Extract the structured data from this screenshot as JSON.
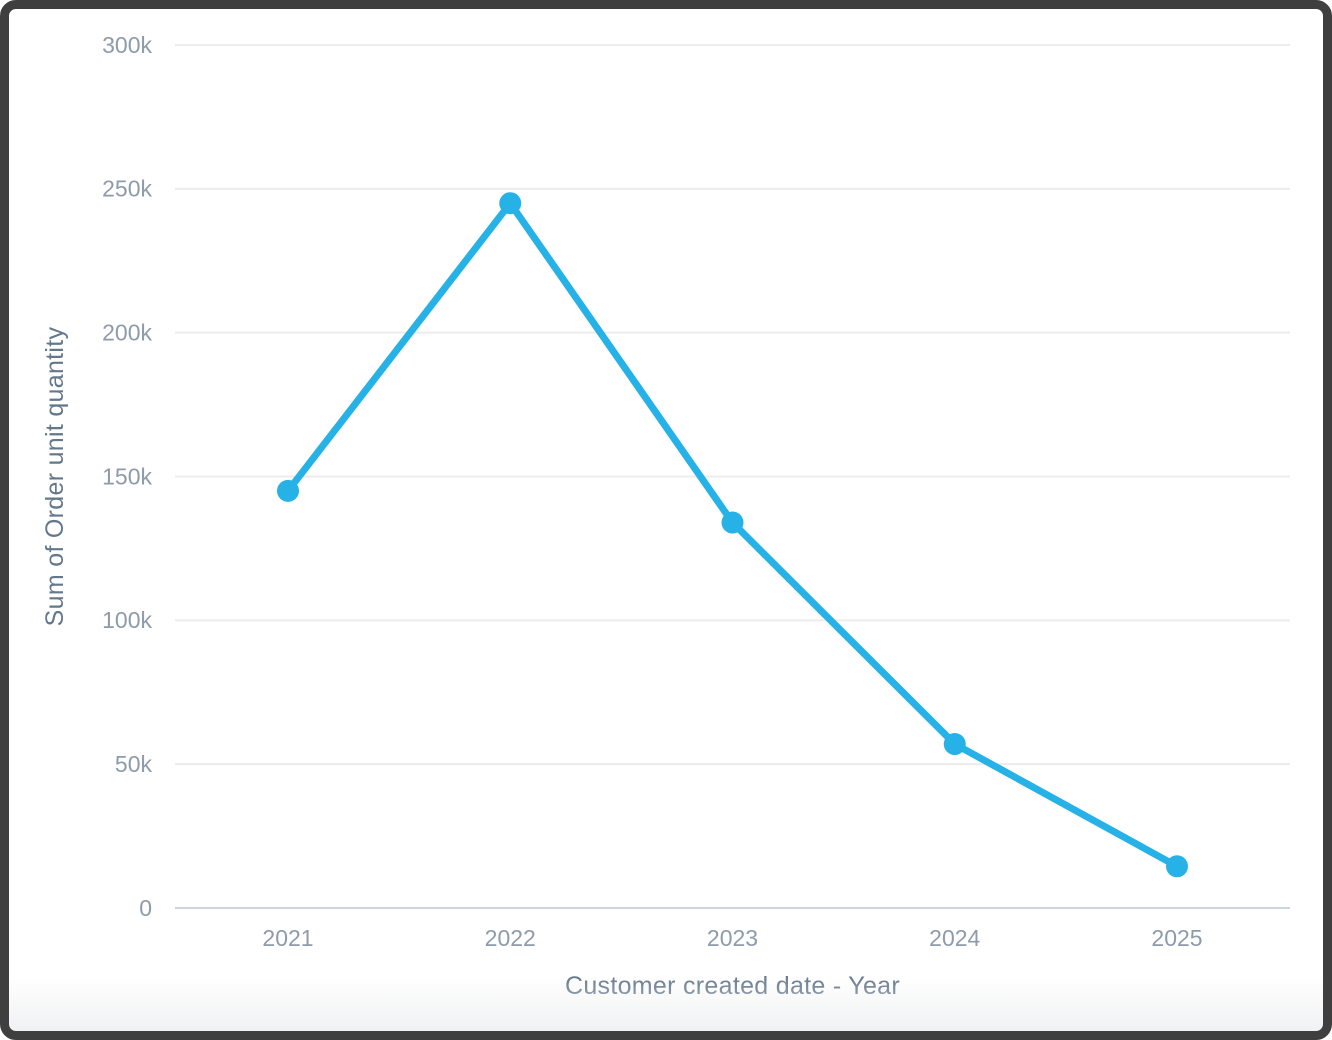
{
  "style": {
    "frame_border_color": "#3f3f3f",
    "card_background": "#ffffff",
    "line_color": "#26b1e7",
    "point_color": "#26b1e7",
    "gridline_color": "#ececec",
    "axis_line_color": "#ccd6e2",
    "tick_label_color": "#8e9baa",
    "axis_title_color": "#64788c"
  },
  "chart_data": {
    "type": "line",
    "title": "",
    "xlabel": "Customer created date - Year",
    "ylabel": "Sum of Order unit quantity",
    "x": [
      "2021",
      "2022",
      "2023",
      "2024",
      "2025"
    ],
    "values": [
      145000,
      245000,
      134000,
      57000,
      14500
    ],
    "ylim": [
      0,
      300000
    ],
    "yticks": [
      0,
      50000,
      100000,
      150000,
      200000,
      250000,
      300000
    ],
    "ytick_labels": [
      "0",
      "50k",
      "100k",
      "150k",
      "200k",
      "250k",
      "300k"
    ],
    "grid": "horizontal-only",
    "legend": "none",
    "marker": "circle"
  }
}
